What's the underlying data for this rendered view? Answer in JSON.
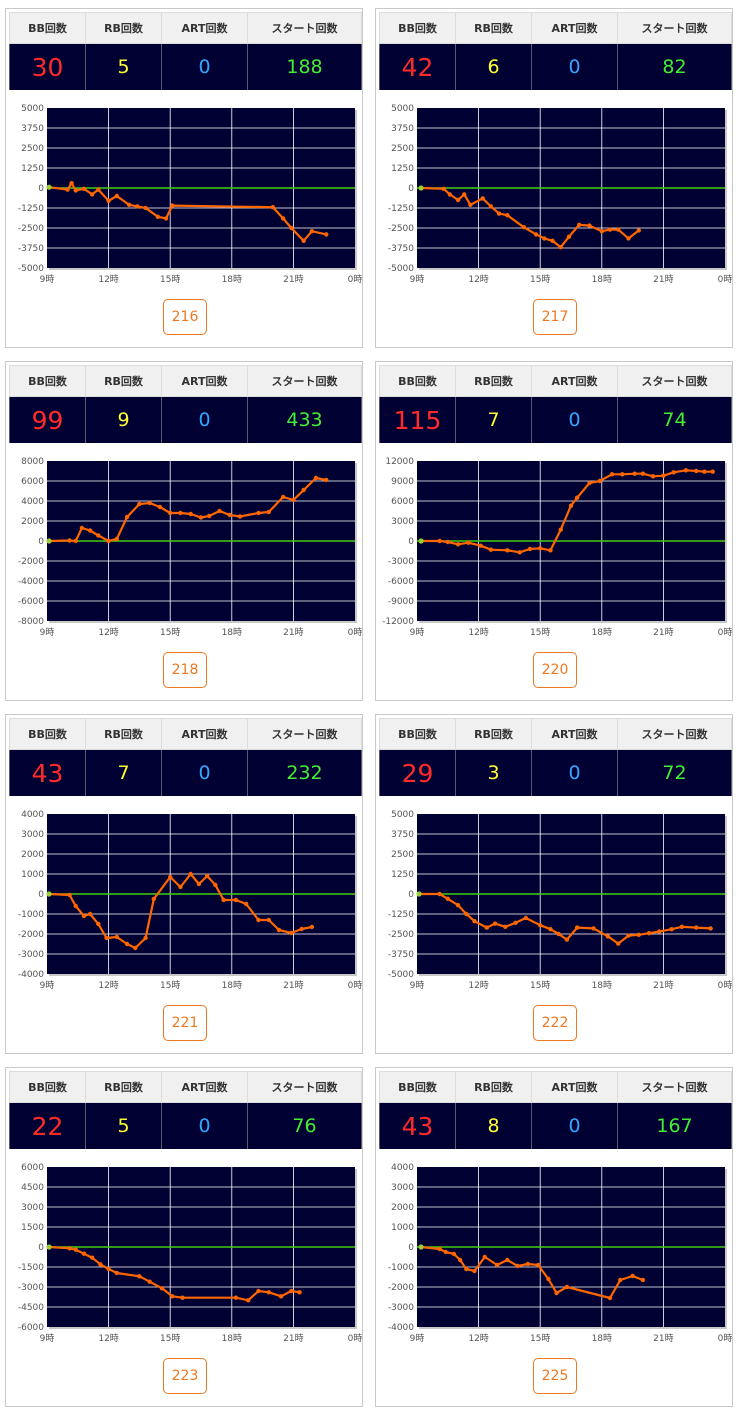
{
  "headers": {
    "bb": "BB回数",
    "rb": "RB回数",
    "art": "ART回数",
    "start": "スタート回数"
  },
  "x_ticks": [
    "9時",
    "12時",
    "15時",
    "18時",
    "21時",
    "0時"
  ],
  "colors": {
    "plot_bg": "#000033",
    "grid": "#ffffff",
    "zero_line": "#44cc11",
    "series": "#ff6600",
    "bb": "#ff2b2b",
    "rb": "#ffff33",
    "art": "#33a6ff",
    "start": "#44ee33",
    "button": "#ee7722"
  },
  "machines": [
    {
      "number": "216",
      "bb": "30",
      "rb": "5",
      "art": "0",
      "start": "188",
      "chart_data": {
        "type": "line",
        "x_range": [
          9,
          24
        ],
        "ylim": [
          -5000,
          5000
        ],
        "y_ticks": [
          "5000",
          "3750",
          "2500",
          "1250",
          "0",
          "-1250",
          "-2500",
          "-3750",
          "-5000"
        ],
        "x": [
          9.1,
          10.0,
          10.2,
          10.4,
          10.8,
          11.2,
          11.5,
          12.0,
          12.4,
          13.0,
          13.4,
          13.8,
          14.4,
          14.8,
          15.1,
          20.0,
          20.5,
          20.9,
          21.5,
          21.9,
          22.6
        ],
        "y": [
          50,
          -100,
          300,
          -150,
          -50,
          -400,
          -100,
          -800,
          -500,
          -1050,
          -1150,
          -1250,
          -1800,
          -1900,
          -1100,
          -1200,
          -1900,
          -2500,
          -3300,
          -2700,
          -2900
        ]
      }
    },
    {
      "number": "217",
      "bb": "42",
      "rb": "6",
      "art": "0",
      "start": "82",
      "chart_data": {
        "type": "line",
        "x_range": [
          9,
          24
        ],
        "ylim": [
          -5000,
          5000
        ],
        "y_ticks": [
          "5000",
          "3750",
          "2500",
          "1250",
          "0",
          "-1250",
          "-2500",
          "-3750",
          "-5000"
        ],
        "x": [
          9.2,
          10.3,
          10.6,
          11.0,
          11.3,
          11.6,
          12.2,
          12.6,
          13.0,
          13.4,
          14.2,
          14.8,
          15.2,
          15.6,
          16.0,
          16.4,
          16.9,
          17.4,
          18.0,
          18.4,
          18.8,
          19.3,
          19.8
        ],
        "y": [
          0,
          -50,
          -400,
          -750,
          -400,
          -1050,
          -650,
          -1150,
          -1600,
          -1700,
          -2450,
          -2900,
          -3150,
          -3300,
          -3700,
          -3050,
          -2300,
          -2350,
          -2700,
          -2600,
          -2600,
          -3150,
          -2650
        ]
      }
    },
    {
      "number": "218",
      "bb": "99",
      "rb": "9",
      "art": "0",
      "start": "433",
      "chart_data": {
        "type": "line",
        "x_range": [
          9,
          24
        ],
        "ylim": [
          -8000,
          8000
        ],
        "y_ticks": [
          "8000",
          "6000",
          "4000",
          "2000",
          "0",
          "-2000",
          "-4000",
          "-6000",
          "-8000"
        ],
        "x": [
          9.1,
          10.1,
          10.4,
          10.7,
          11.1,
          11.5,
          12.0,
          12.4,
          12.9,
          13.5,
          14.0,
          14.5,
          15.0,
          15.5,
          16.0,
          16.5,
          16.9,
          17.4,
          17.9,
          18.4,
          19.3,
          19.8,
          20.5,
          21.0,
          21.5,
          22.1,
          22.6
        ],
        "y": [
          0,
          50,
          0,
          1300,
          1050,
          550,
          0,
          200,
          2400,
          3700,
          3800,
          3400,
          2800,
          2800,
          2700,
          2350,
          2500,
          3000,
          2600,
          2450,
          2800,
          2900,
          4400,
          4100,
          5100,
          6300,
          6100
        ]
      }
    },
    {
      "number": "220",
      "bb": "115",
      "rb": "7",
      "art": "0",
      "start": "74",
      "chart_data": {
        "type": "line",
        "x_range": [
          9,
          24
        ],
        "ylim": [
          -12000,
          12000
        ],
        "y_ticks": [
          "12000",
          "9000",
          "6000",
          "3000",
          "0",
          "-3000",
          "-6000",
          "-9000",
          "-12000"
        ],
        "x": [
          9.2,
          10.1,
          10.5,
          11.0,
          11.5,
          12.1,
          12.6,
          13.4,
          14.0,
          14.5,
          15.0,
          15.5,
          16.0,
          16.5,
          16.8,
          17.4,
          17.9,
          18.5,
          19.0,
          19.6,
          20.0,
          20.5,
          21.0,
          21.5,
          22.1,
          22.6,
          23.0,
          23.4
        ],
        "y": [
          0,
          0,
          -150,
          -500,
          -250,
          -700,
          -1300,
          -1400,
          -1700,
          -1200,
          -1100,
          -1400,
          1700,
          5300,
          6500,
          8700,
          9000,
          10000,
          10000,
          10100,
          10100,
          9700,
          9800,
          10300,
          10600,
          10500,
          10400,
          10400
        ]
      }
    },
    {
      "number": "221",
      "bb": "43",
      "rb": "7",
      "art": "0",
      "start": "232",
      "chart_data": {
        "type": "line",
        "x_range": [
          9,
          24
        ],
        "ylim": [
          -4000,
          4000
        ],
        "y_ticks": [
          "4000",
          "3000",
          "2000",
          "1000",
          "0",
          "-1000",
          "-2000",
          "-3000",
          "-4000"
        ],
        "x": [
          9.1,
          10.1,
          10.4,
          10.8,
          11.1,
          11.5,
          11.9,
          12.4,
          12.9,
          13.3,
          13.8,
          14.2,
          15.0,
          15.5,
          16.0,
          16.4,
          16.8,
          17.2,
          17.6,
          18.2,
          18.7,
          19.3,
          19.8,
          20.3,
          20.9,
          21.4,
          21.9
        ],
        "y": [
          0,
          -50,
          -600,
          -1100,
          -1000,
          -1500,
          -2200,
          -2150,
          -2500,
          -2700,
          -2200,
          -250,
          850,
          350,
          1000,
          500,
          900,
          450,
          -300,
          -300,
          -500,
          -1300,
          -1300,
          -1800,
          -1950,
          -1750,
          -1650
        ]
      }
    },
    {
      "number": "222",
      "bb": "29",
      "rb": "3",
      "art": "0",
      "start": "72",
      "chart_data": {
        "type": "line",
        "x_range": [
          9,
          24
        ],
        "ylim": [
          -5000,
          5000
        ],
        "y_ticks": [
          "5000",
          "3750",
          "2500",
          "1250",
          "0",
          "-1250",
          "-2500",
          "-3750",
          "-5000"
        ],
        "x": [
          9.1,
          10.1,
          10.5,
          11.0,
          11.4,
          11.8,
          12.4,
          12.8,
          13.3,
          13.8,
          14.3,
          15.0,
          15.5,
          15.9,
          16.3,
          16.8,
          17.6,
          18.3,
          18.8,
          19.3,
          19.8,
          20.3,
          20.8,
          21.4,
          21.9,
          22.6,
          23.3
        ],
        "y": [
          0,
          0,
          -300,
          -700,
          -1250,
          -1700,
          -2100,
          -1850,
          -2050,
          -1800,
          -1500,
          -1950,
          -2200,
          -2500,
          -2850,
          -2100,
          -2150,
          -2650,
          -3100,
          -2600,
          -2550,
          -2450,
          -2350,
          -2200,
          -2050,
          -2100,
          -2150
        ]
      }
    },
    {
      "number": "223",
      "bb": "22",
      "rb": "5",
      "art": "0",
      "start": "76",
      "chart_data": {
        "type": "line",
        "x_range": [
          9,
          24
        ],
        "ylim": [
          -6000,
          6000
        ],
        "y_ticks": [
          "6000",
          "4500",
          "3000",
          "1500",
          "0",
          "-1500",
          "-3000",
          "-4500",
          "-6000"
        ],
        "x": [
          9.1,
          10.1,
          10.4,
          10.8,
          11.2,
          11.6,
          12.0,
          12.4,
          13.5,
          14.0,
          14.6,
          15.1,
          15.6,
          18.2,
          18.8,
          19.3,
          19.8,
          20.4,
          20.9,
          21.3
        ],
        "y": [
          0,
          -100,
          -200,
          -500,
          -800,
          -1300,
          -1650,
          -1950,
          -2200,
          -2600,
          -3100,
          -3700,
          -3800,
          -3800,
          -4000,
          -3300,
          -3400,
          -3700,
          -3300,
          -3400
        ]
      }
    },
    {
      "number": "225",
      "bb": "43",
      "rb": "8",
      "art": "0",
      "start": "167",
      "chart_data": {
        "type": "line",
        "x_range": [
          9,
          24
        ],
        "ylim": [
          -4000,
          4000
        ],
        "y_ticks": [
          "4000",
          "3000",
          "2000",
          "1000",
          "0",
          "-1000",
          "-2000",
          "-3000",
          "-4000"
        ],
        "x": [
          9.2,
          10.1,
          10.4,
          10.8,
          11.1,
          11.4,
          11.8,
          12.3,
          12.9,
          13.4,
          13.9,
          14.4,
          14.9,
          15.4,
          15.8,
          16.3,
          18.4,
          18.9,
          19.5,
          20.0
        ],
        "y": [
          0,
          -100,
          -250,
          -350,
          -650,
          -1100,
          -1200,
          -500,
          -900,
          -650,
          -950,
          -850,
          -900,
          -1600,
          -2300,
          -2000,
          -2550,
          -1650,
          -1450,
          -1650
        ]
      }
    }
  ]
}
